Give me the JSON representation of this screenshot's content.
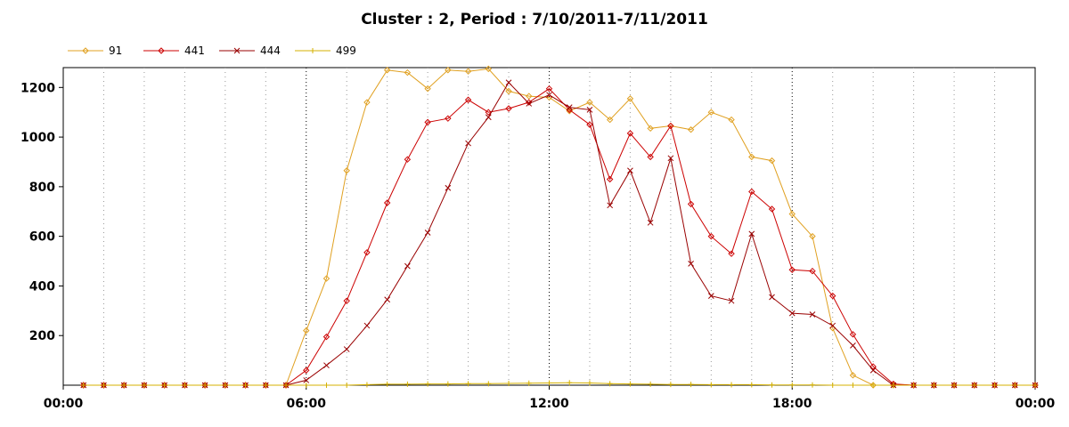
{
  "chart_data": {
    "type": "line",
    "title": "Cluster : 2, Period : 7/10/2011-7/11/2011",
    "xlabel": "",
    "ylabel": "",
    "x_range_hours": [
      0,
      24
    ],
    "ylim": [
      0,
      1280
    ],
    "x_ticks": [
      {
        "hour": 0,
        "label": "00:00"
      },
      {
        "hour": 6,
        "label": "06:00"
      },
      {
        "hour": 12,
        "label": "12:00"
      },
      {
        "hour": 18,
        "label": "18:00"
      },
      {
        "hour": 24,
        "label": "00:00"
      }
    ],
    "y_ticks": [
      200,
      400,
      600,
      800,
      1000,
      1200
    ],
    "grid": "dotted-vertical",
    "legend_position": "top-left",
    "x_hours": [
      0.5,
      1,
      1.5,
      2,
      2.5,
      3,
      3.5,
      4,
      4.5,
      5,
      5.5,
      6,
      6.5,
      7,
      7.5,
      8,
      8.5,
      9,
      9.5,
      10,
      10.5,
      11,
      11.5,
      12,
      12.5,
      13,
      13.5,
      14,
      14.5,
      15,
      15.5,
      16,
      16.5,
      17,
      17.5,
      18,
      18.5,
      19,
      19.5,
      20,
      20.5,
      21,
      21.5,
      22,
      22.5,
      23,
      23.5,
      24
    ],
    "series": [
      {
        "name": "91",
        "color": "#e0a020",
        "marker": "diamond",
        "values": [
          0,
          0,
          0,
          0,
          0,
          0,
          0,
          0,
          0,
          0,
          0,
          220,
          430,
          865,
          1140,
          1270,
          1260,
          1195,
          1270,
          1265,
          1275,
          1185,
          1165,
          1160,
          1105,
          1140,
          1070,
          1155,
          1035,
          1045,
          1030,
          1100,
          1070,
          920,
          905,
          690,
          600,
          230,
          40,
          0,
          0,
          0,
          0,
          0,
          0,
          0,
          0,
          0
        ]
      },
      {
        "name": "441",
        "color": "#cc0000",
        "marker": "diamond",
        "values": [
          0,
          0,
          0,
          0,
          0,
          0,
          0,
          0,
          0,
          0,
          0,
          60,
          195,
          340,
          535,
          735,
          910,
          1060,
          1075,
          1150,
          1100,
          1115,
          1140,
          1195,
          1110,
          1050,
          830,
          1015,
          920,
          1045,
          730,
          600,
          530,
          780,
          710,
          465,
          460,
          360,
          205,
          75,
          5,
          0,
          0,
          0,
          0,
          0,
          0,
          0
        ]
      },
      {
        "name": "444",
        "color": "#990000",
        "marker": "x",
        "values": [
          0,
          0,
          0,
          0,
          0,
          0,
          0,
          0,
          0,
          0,
          0,
          20,
          80,
          145,
          240,
          345,
          480,
          615,
          795,
          975,
          1080,
          1220,
          1135,
          1170,
          1120,
          1110,
          725,
          865,
          655,
          915,
          490,
          360,
          340,
          610,
          355,
          290,
          285,
          240,
          160,
          60,
          0,
          0,
          0,
          0,
          0,
          0,
          0,
          0
        ]
      },
      {
        "name": "499",
        "color": "#d4b000",
        "marker": "plus",
        "values": [
          0,
          0,
          0,
          0,
          0,
          0,
          0,
          0,
          0,
          0,
          0,
          0,
          0,
          0,
          2,
          4,
          4,
          5,
          5,
          6,
          6,
          7,
          8,
          9,
          10,
          9,
          6,
          5,
          4,
          3,
          3,
          2,
          2,
          2,
          1,
          1,
          1,
          0,
          0,
          0,
          0,
          0,
          0,
          0,
          0,
          0,
          0,
          0
        ]
      }
    ]
  }
}
